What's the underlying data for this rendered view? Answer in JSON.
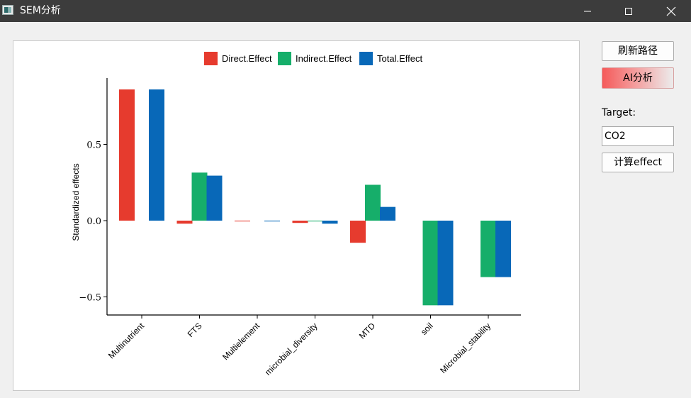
{
  "window": {
    "title": "SEM分析",
    "min_icon": "minimize-icon",
    "max_icon": "maximize-icon",
    "close_icon": "close-icon"
  },
  "sidebar": {
    "refresh_label": "刷新路径",
    "ai_label": "AI分析",
    "target_label": "Target:",
    "target_value": "CO2",
    "calc_label": "计算effect"
  },
  "chart_data": {
    "type": "bar",
    "categories": [
      "Multinutrient",
      "FTS",
      "Multielement",
      "microbial_diversity",
      "MTD",
      "soil",
      "Microbial_stability"
    ],
    "series": [
      {
        "name": "Direct.Effect",
        "color": "#e63b2e",
        "values": [
          0.86,
          -0.02,
          -0.005,
          -0.015,
          -0.145,
          null,
          null
        ]
      },
      {
        "name": "Indirect.Effect",
        "color": "#16ae6a",
        "values": [
          null,
          0.315,
          null,
          -0.005,
          0.235,
          -0.555,
          -0.37
        ]
      },
      {
        "name": "Total.Effect",
        "color": "#0868b8",
        "values": [
          0.86,
          0.295,
          -0.005,
          -0.02,
          0.09,
          -0.555,
          -0.37
        ]
      }
    ],
    "ylabel": "Standardized effects",
    "yticks": [
      0.5,
      0.0,
      -0.5
    ],
    "ytick_labels": [
      "0.5",
      "0.0",
      "−0.5"
    ],
    "ylim": [
      -0.62,
      0.93
    ],
    "legend_position": "top"
  }
}
